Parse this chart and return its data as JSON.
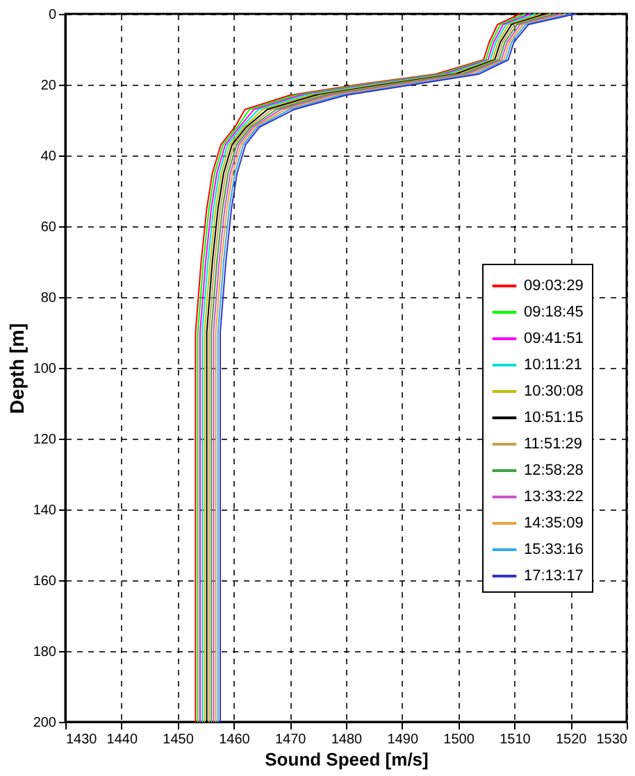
{
  "chart_data": {
    "type": "line",
    "xlabel": "Sound Speed [m/s]",
    "ylabel": "Depth [m]",
    "xlim": [
      1430,
      1530
    ],
    "xticks": [
      1430,
      1440,
      1450,
      1460,
      1470,
      1480,
      1490,
      1500,
      1510,
      1520,
      1530
    ],
    "ylim": [
      200,
      0
    ],
    "yticks": [
      0,
      20,
      40,
      60,
      80,
      100,
      120,
      140,
      160,
      180,
      200
    ],
    "grid": true,
    "legend": "right",
    "line_style": "solid",
    "marker": "none",
    "series": [
      {
        "name": "09:03:29",
        "color": "#ff0000",
        "x": [
          1511,
          1507,
          1505.5,
          1504.5,
          1496,
          1482,
          1470,
          1462,
          1460.2,
          1457.7,
          1456.2,
          1455.2,
          1454.2,
          1453.2,
          1453.2,
          1453.2,
          1453.2,
          1453.2,
          1453.2,
          1453.2
        ],
        "values": [
          0,
          3,
          8,
          13,
          17,
          20,
          23,
          27,
          32,
          37,
          45,
          55,
          70,
          90,
          110,
          130,
          150,
          170,
          190,
          200
        ]
      },
      {
        "name": "09:18:45",
        "color": "#00ff00",
        "x": [
          1511.9,
          1507.5,
          1505.9,
          1504.9,
          1496.7,
          1482.9,
          1470.9,
          1462.8,
          1460.6,
          1458.1,
          1456.6,
          1455.6,
          1454.6,
          1453.6,
          1453.6,
          1453.6,
          1453.6,
          1453.6,
          1453.6,
          1453.6
        ],
        "values": [
          0,
          3,
          8,
          13,
          17,
          20,
          23,
          27,
          32,
          37,
          45,
          55,
          70,
          90,
          110,
          130,
          150,
          170,
          190,
          200
        ]
      },
      {
        "name": "09:41:51",
        "color": "#ff00ff",
        "x": [
          1512.8,
          1508,
          1506.3,
          1505.3,
          1497.4,
          1483.8,
          1471.8,
          1463.6,
          1461,
          1458.5,
          1457,
          1456,
          1455,
          1454,
          1454,
          1454,
          1454,
          1454,
          1454,
          1454
        ],
        "values": [
          0,
          3,
          8,
          13,
          17,
          20,
          23,
          27,
          32,
          37,
          45,
          55,
          70,
          90,
          110,
          130,
          150,
          170,
          190,
          200
        ]
      },
      {
        "name": "10:11:21",
        "color": "#00e0e0",
        "x": [
          1513.7,
          1508.5,
          1506.7,
          1505.7,
          1498.1,
          1484.7,
          1472.7,
          1464.4,
          1461.4,
          1458.9,
          1457.4,
          1456.4,
          1455.4,
          1454.4,
          1454.4,
          1454.4,
          1454.4,
          1454.4,
          1454.4,
          1454.4
        ],
        "values": [
          0,
          3,
          8,
          13,
          17,
          20,
          23,
          27,
          32,
          37,
          45,
          55,
          70,
          90,
          110,
          130,
          150,
          170,
          190,
          200
        ]
      },
      {
        "name": "10:30:08",
        "color": "#c0c000",
        "x": [
          1514.6,
          1509,
          1507.1,
          1506.1,
          1498.8,
          1485.6,
          1473.6,
          1465.2,
          1461.8,
          1459.3,
          1457.8,
          1456.8,
          1455.8,
          1454.8,
          1454.8,
          1454.8,
          1454.8,
          1454.8,
          1454.8,
          1454.8
        ],
        "values": [
          0,
          3,
          8,
          13,
          17,
          20,
          23,
          27,
          32,
          37,
          45,
          55,
          70,
          90,
          110,
          130,
          150,
          170,
          190,
          200
        ]
      },
      {
        "name": "10:51:15",
        "color": "#000000",
        "x": [
          1515.5,
          1509.5,
          1507.5,
          1506.5,
          1499.5,
          1486.5,
          1474.5,
          1466,
          1462.2,
          1459.7,
          1458.2,
          1457.2,
          1456.2,
          1455.2,
          1455.2,
          1455.2,
          1455.2,
          1455.2,
          1455.2,
          1455.2
        ],
        "values": [
          0,
          3,
          8,
          13,
          17,
          20,
          23,
          27,
          32,
          37,
          45,
          55,
          70,
          90,
          110,
          130,
          150,
          170,
          190,
          200
        ]
      },
      {
        "name": "11:51:29",
        "color": "#c8a050",
        "x": [
          1516.4,
          1510,
          1507.9,
          1506.9,
          1500.2,
          1487.4,
          1475.4,
          1466.8,
          1462.6,
          1460.1,
          1458.6,
          1457.6,
          1456.6,
          1455.6,
          1455.6,
          1455.6,
          1455.6,
          1455.6,
          1455.6,
          1455.6
        ],
        "values": [
          0,
          3,
          8,
          13,
          17,
          20,
          23,
          27,
          32,
          37,
          45,
          55,
          70,
          90,
          110,
          130,
          150,
          170,
          190,
          200
        ]
      },
      {
        "name": "12:58:28",
        "color": "#40a040",
        "x": [
          1517.3,
          1510.5,
          1508.3,
          1507.3,
          1500.9,
          1488.3,
          1476.3,
          1467.6,
          1463,
          1460.5,
          1459,
          1458,
          1457,
          1456,
          1456,
          1456,
          1456,
          1456,
          1456,
          1456
        ],
        "values": [
          0,
          3,
          8,
          13,
          17,
          20,
          23,
          27,
          32,
          37,
          45,
          55,
          70,
          90,
          110,
          130,
          150,
          170,
          190,
          200
        ]
      },
      {
        "name": "13:33:22",
        "color": "#cc55cc",
        "x": [
          1518.2,
          1511,
          1508.7,
          1507.7,
          1501.6,
          1489.2,
          1477.2,
          1468.4,
          1463.4,
          1460.9,
          1459.4,
          1458.4,
          1457.4,
          1456.4,
          1456.4,
          1456.4,
          1456.4,
          1456.4,
          1456.4,
          1456.4
        ],
        "values": [
          0,
          3,
          8,
          13,
          17,
          20,
          23,
          27,
          32,
          37,
          45,
          55,
          70,
          90,
          110,
          130,
          150,
          170,
          190,
          200
        ]
      },
      {
        "name": "14:35:09",
        "color": "#f0a040",
        "x": [
          1519.1,
          1511.5,
          1509.1,
          1508.1,
          1502.3,
          1490.1,
          1478.1,
          1469.2,
          1463.8,
          1461.3,
          1459.8,
          1458.8,
          1457.8,
          1456.8,
          1456.8,
          1456.8,
          1456.8,
          1456.8,
          1456.8,
          1456.8
        ],
        "values": [
          0,
          3,
          8,
          13,
          17,
          20,
          23,
          27,
          32,
          37,
          45,
          55,
          70,
          90,
          110,
          130,
          150,
          170,
          190,
          200
        ]
      },
      {
        "name": "15:33:16",
        "color": "#33aaee",
        "x": [
          1520,
          1512,
          1509.5,
          1508.5,
          1503,
          1491,
          1479,
          1470,
          1464.2,
          1461.7,
          1460.2,
          1459.2,
          1458.2,
          1457.2,
          1457.2,
          1457.2,
          1457.2,
          1457.2,
          1457.2,
          1457.2
        ],
        "values": [
          0,
          3,
          8,
          13,
          17,
          20,
          23,
          27,
          32,
          37,
          45,
          55,
          70,
          90,
          110,
          130,
          150,
          170,
          190,
          200
        ]
      },
      {
        "name": "17:13:17",
        "color": "#3333cc",
        "x": [
          1520.9,
          1512.5,
          1509.9,
          1508.9,
          1503.7,
          1491.9,
          1479.9,
          1470.8,
          1464.6,
          1462.1,
          1460.6,
          1459.6,
          1458.6,
          1457.6,
          1457.6,
          1457.6,
          1457.6,
          1457.6,
          1457.6,
          1457.6
        ],
        "values": [
          0,
          3,
          8,
          13,
          17,
          20,
          23,
          27,
          32,
          37,
          45,
          55,
          70,
          90,
          110,
          130,
          150,
          170,
          190,
          200
        ]
      }
    ]
  }
}
